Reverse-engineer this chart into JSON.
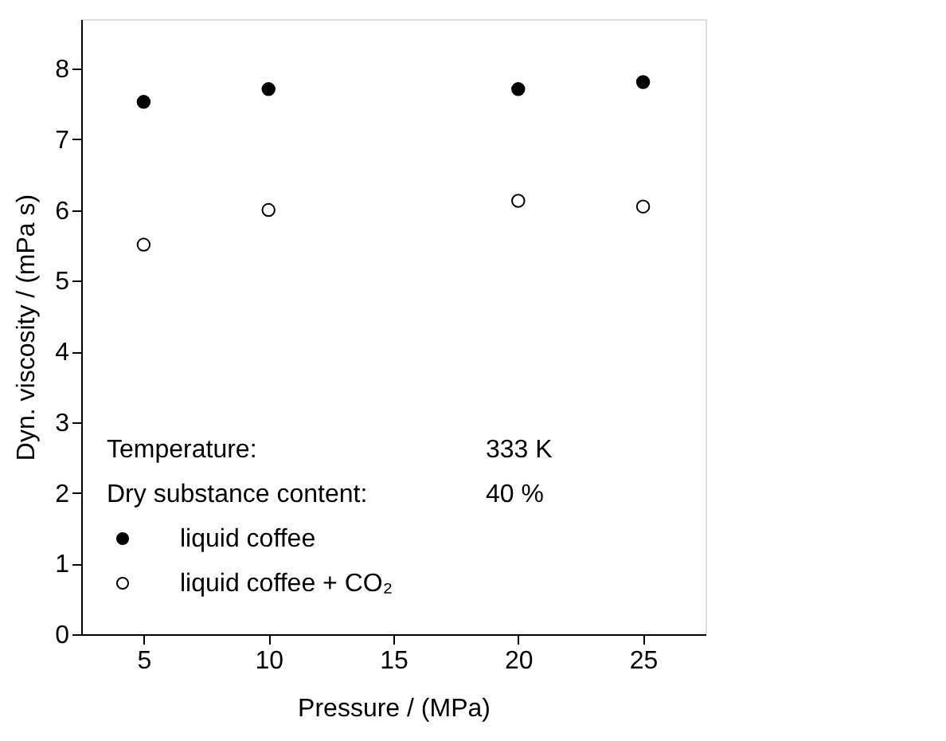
{
  "chart_data": {
    "type": "scatter",
    "xlabel": "Pressure / (MPa)",
    "ylabel": "Dyn. viscosity / (mPa s)",
    "x": [
      5,
      10,
      20,
      25
    ],
    "series": [
      {
        "name": "liquid coffee",
        "color": "#000000",
        "values": [
          7.53,
          7.71,
          7.71,
          7.81
        ]
      },
      {
        "name": "liquid coffee + CO₂",
        "color": "#ffffff",
        "values": [
          5.51,
          6.0,
          6.13,
          6.05
        ]
      }
    ],
    "marker": "circle",
    "xlim": [
      2.5,
      27.5
    ],
    "xticks": [
      5,
      10,
      15,
      20,
      25
    ],
    "ylim": [
      0,
      8.7
    ],
    "yticks": [
      0,
      1,
      2,
      3,
      4,
      5,
      6,
      7,
      8
    ],
    "grid": false,
    "legend": "bottom left",
    "annotations": [
      "Temperature:",
      "333 K",
      "Dry substance content:",
      "40 %"
    ]
  }
}
